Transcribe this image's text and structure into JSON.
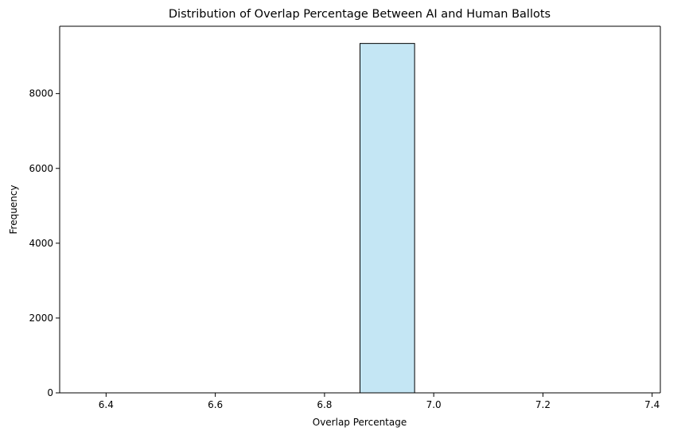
{
  "chart_data": {
    "type": "bar",
    "title": "Distribution of Overlap Percentage Between AI and Human Ballots",
    "xlabel": "Overlap Percentage",
    "ylabel": "Frequency",
    "xlim": [
      6.315,
      7.415
    ],
    "ylim": [
      0,
      9800
    ],
    "xticks": [
      6.4,
      6.6,
      6.8,
      7.0,
      7.2,
      7.4
    ],
    "xtick_labels": [
      "6.4",
      "6.6",
      "6.8",
      "7.0",
      "7.2",
      "7.4"
    ],
    "yticks": [
      0,
      2000,
      4000,
      6000,
      8000
    ],
    "ytick_labels": [
      "0",
      "2000",
      "4000",
      "6000",
      "8000"
    ],
    "bin_edges": [
      6.365,
      6.465,
      6.565,
      6.665,
      6.765,
      6.865,
      6.965,
      7.065,
      7.165,
      7.265,
      7.365
    ],
    "values": [
      0,
      0,
      0,
      0,
      0,
      9340,
      0,
      0,
      0,
      0
    ],
    "bar_color": "#c4e6f4",
    "edge_color": "#000000",
    "grid": false
  }
}
